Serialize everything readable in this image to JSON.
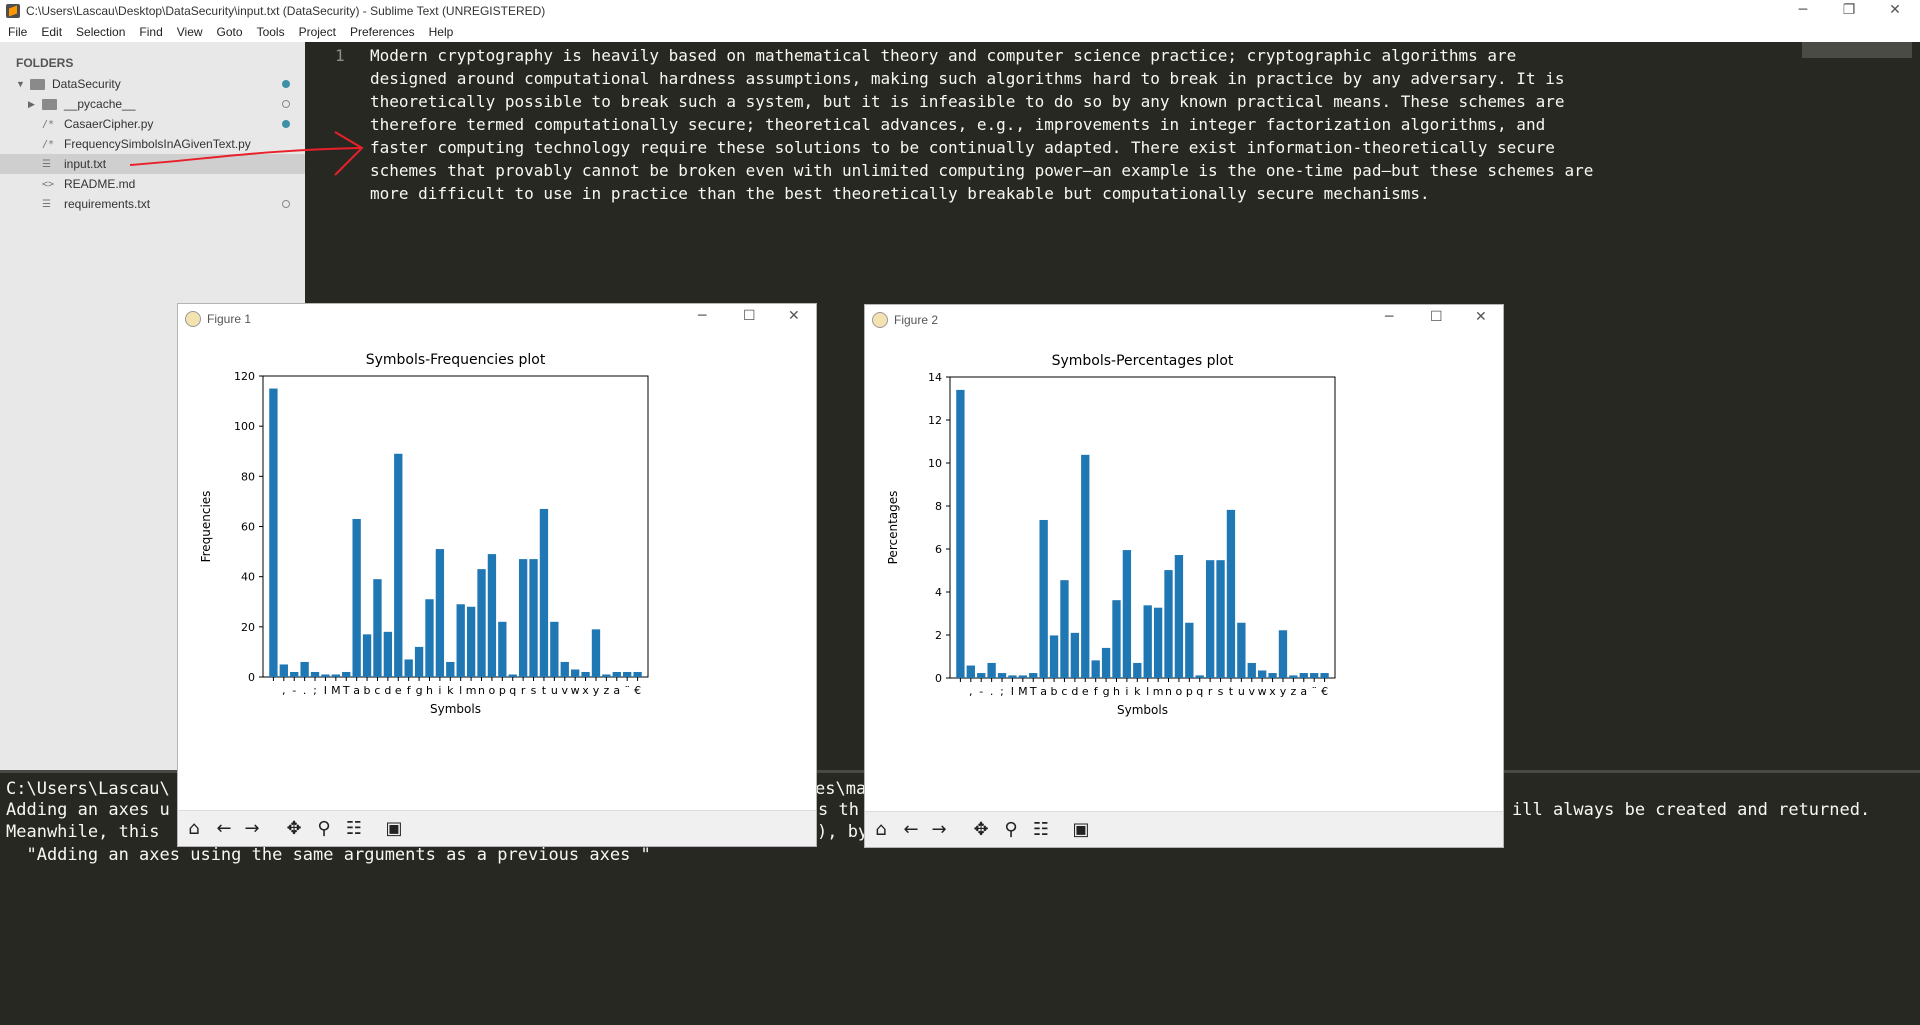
{
  "window": {
    "title": "C:\\Users\\Lascau\\Desktop\\DataSecurity\\input.txt (DataSecurity) - Sublime Text (UNREGISTERED)"
  },
  "menu": [
    "File",
    "Edit",
    "Selection",
    "Find",
    "View",
    "Goto",
    "Tools",
    "Project",
    "Preferences",
    "Help"
  ],
  "sidebar": {
    "header": "FOLDERS",
    "root": "DataSecurity",
    "items": [
      {
        "label": "__pycache__",
        "icon": "folder-icon"
      },
      {
        "label": "CasaerCipher.py",
        "icon": "python-file-icon"
      },
      {
        "label": "FrequencySimbolsInAGivenText.py",
        "icon": "python-file-icon"
      },
      {
        "label": "input.txt",
        "icon": "text-file-icon"
      },
      {
        "label": "README.md",
        "icon": "markdown-file-icon"
      },
      {
        "label": "requirements.txt",
        "icon": "text-file-icon"
      }
    ]
  },
  "editor": {
    "line_number": "1",
    "lines": [
      "Modern cryptography is heavily based on mathematical theory and computer science practice; cryptographic algorithms are",
      "designed around computational hardness assumptions, making such algorithms hard to break in practice by any adversary. It is",
      "theoretically possible to break such a system, but it is infeasible to do so by any known practical means. These schemes are",
      "therefore termed computationally secure; theoretical advances, e.g., improvements in integer factorization algorithms, and",
      "faster computing technology require these solutions to be continually adapted. There exist information-theoretically secure",
      "schemes that provably cannot be broken even with unlimited computing power—an example is the one-time pad—but these schemes are",
      "more difficult to use in practice than the best theoretically breakable but computationally secure mechanisms."
    ]
  },
  "console": {
    "lines": [
      {
        "left": "C:\\Users\\Lascau\\",
        "right": "es\\ma"
      },
      {
        "left": "Adding an axes u",
        "mid": "s th",
        "right": "ill always be created and returned."
      },
      {
        "left": "Meanwhile, this",
        "mid": "), by",
        "right": ""
      },
      {
        "left": "  \"Adding an axes using the same arguments as a previous axes \"",
        "right": ""
      }
    ]
  },
  "figures": [
    {
      "window_title": "Figure 1",
      "chart_data": {
        "type": "bar",
        "title": "Symbols-Frequencies plot",
        "xlabel": "Symbols",
        "ylabel": "Frequencies",
        "ylim": [
          0,
          120
        ],
        "yticks": [
          0,
          20,
          40,
          60,
          80,
          100,
          120
        ],
        "categories": [
          " ",
          ",",
          "-",
          ".",
          ";",
          "I",
          "M",
          "T",
          "a",
          "b",
          "c",
          "d",
          "e",
          "f",
          "g",
          "h",
          "i",
          "k",
          "l",
          "m",
          "n",
          "o",
          "p",
          "q",
          "r",
          "s",
          "t",
          "u",
          "v",
          "w",
          "x",
          "y",
          "z",
          "a",
          "¨",
          "€"
        ],
        "values": [
          115,
          5,
          2,
          6,
          2,
          1,
          1,
          2,
          63,
          17,
          39,
          18,
          89,
          7,
          12,
          31,
          51,
          6,
          29,
          28,
          43,
          49,
          22,
          1,
          47,
          47,
          67,
          22,
          6,
          3,
          2,
          19,
          1,
          2,
          2,
          2
        ],
        "grid": false
      }
    },
    {
      "window_title": "Figure 2",
      "chart_data": {
        "type": "bar",
        "title": "Symbols-Percentages plot",
        "xlabel": "Symbols",
        "ylabel": "Percentages",
        "ylim": [
          0,
          14
        ],
        "yticks": [
          0,
          2,
          4,
          6,
          8,
          10,
          12,
          14
        ],
        "categories": [
          " ",
          ",",
          "-",
          ".",
          ";",
          "I",
          "M",
          "T",
          "a",
          "b",
          "c",
          "d",
          "e",
          "f",
          "g",
          "h",
          "i",
          "k",
          "l",
          "m",
          "n",
          "o",
          "p",
          "q",
          "r",
          "s",
          "t",
          "u",
          "v",
          "w",
          "x",
          "y",
          "z",
          "a",
          "¨",
          "€"
        ],
        "values": [
          13.4,
          0.58,
          0.23,
          0.7,
          0.23,
          0.12,
          0.12,
          0.23,
          7.35,
          1.98,
          4.55,
          2.1,
          10.38,
          0.82,
          1.4,
          3.62,
          5.95,
          0.7,
          3.38,
          3.27,
          5.02,
          5.72,
          2.57,
          0.12,
          5.48,
          5.48,
          7.82,
          2.57,
          0.7,
          0.35,
          0.23,
          2.22,
          0.12,
          0.23,
          0.23,
          0.23
        ],
        "grid": false
      }
    }
  ],
  "colors": {
    "bar": "#1f77b4",
    "editor_bg": "#272822",
    "sidebar_bg": "#e8e8e8",
    "annotation": "#e8202a"
  }
}
